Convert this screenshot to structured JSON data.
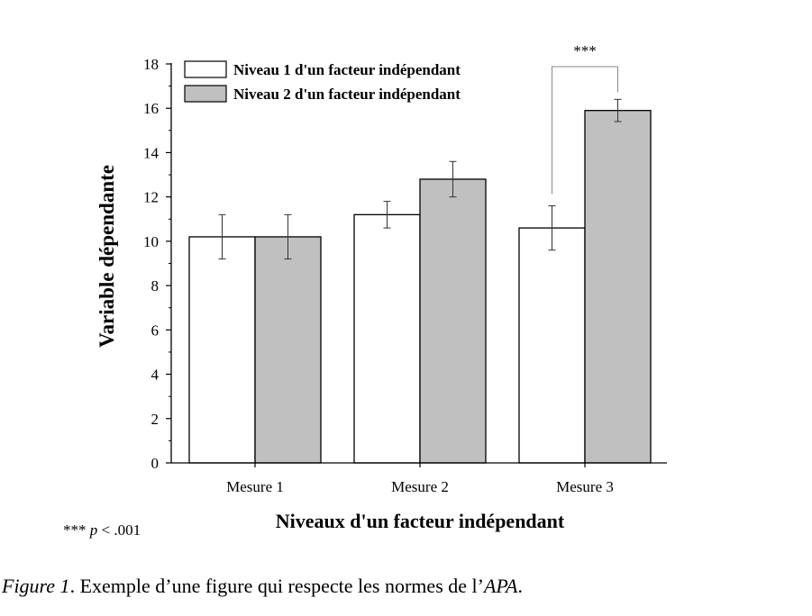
{
  "chart_data": {
    "type": "bar",
    "categories": [
      "Mesure 1",
      "Mesure 2",
      "Mesure 3"
    ],
    "series": [
      {
        "name": "Niveau 1 d'un facteur indépendant",
        "values": [
          10.2,
          11.2,
          10.6
        ],
        "errors": [
          1.0,
          0.6,
          1.0
        ],
        "color": "#ffffff"
      },
      {
        "name": "Niveau 2 d'un facteur indépendant",
        "values": [
          10.2,
          12.8,
          15.9
        ],
        "errors": [
          1.0,
          0.8,
          0.5
        ],
        "color": "#c0c0c0"
      }
    ],
    "xlabel": "Niveaux d'un facteur indépendant",
    "ylabel": "Variable dépendante",
    "ylim": [
      0,
      18
    ],
    "yticks": [
      0,
      2,
      4,
      6,
      8,
      10,
      12,
      14,
      16,
      18
    ],
    "grid": false,
    "legend_position": "top-left",
    "annotation": {
      "text": "***",
      "category": "Mesure 3"
    }
  },
  "note": {
    "stars": "***",
    "p": "p",
    "rest": " < .001"
  },
  "caption": {
    "figure": "Figure 1",
    "dot": ". ",
    "text": "Exemple d’une figure qui respecte les normes de l’",
    "apa": "APA",
    "end": "."
  }
}
